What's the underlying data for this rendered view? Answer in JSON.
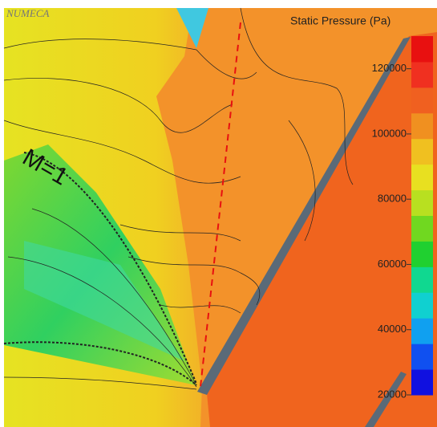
{
  "chart_data": {
    "type": "contour",
    "title": "Static Pressure (Pa)",
    "annotations": [
      "NUMECA",
      "M=1"
    ],
    "clim": [
      20000,
      130000
    ],
    "cticks": [
      20000,
      40000,
      60000,
      80000,
      100000,
      120000
    ],
    "colorscale": [
      "#1010e0",
      "#1050f0",
      "#10a0f0",
      "#10d0d0",
      "#10d890",
      "#20d030",
      "#70d820",
      "#b8e020",
      "#e8e020",
      "#f0c020",
      "#f09020",
      "#f06020",
      "#f03020",
      "#e81010"
    ]
  }
}
